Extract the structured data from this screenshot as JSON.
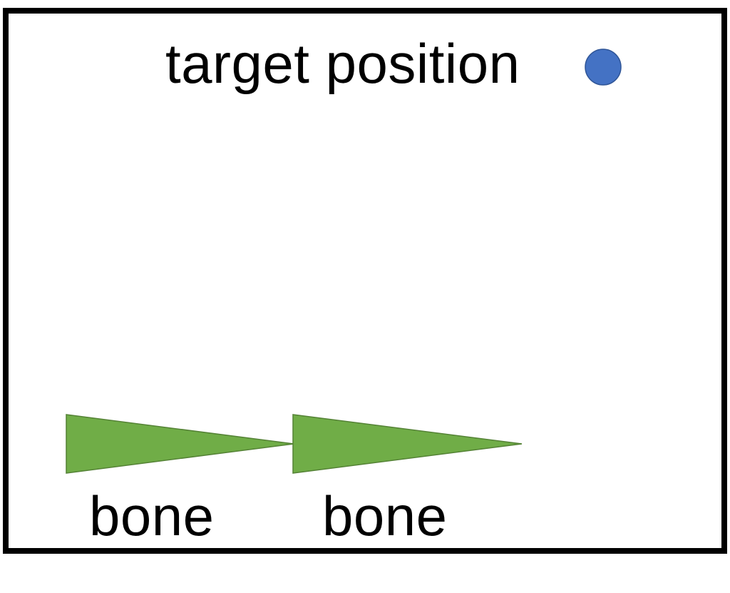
{
  "diagram": {
    "target": {
      "label": "target position",
      "color": "#4472c4",
      "stroke": "#2f5597",
      "icon": "target-dot-icon"
    },
    "bones": [
      {
        "label": "bone",
        "color": "#70ad47",
        "stroke": "#548235",
        "icon": "bone-triangle-icon"
      },
      {
        "label": "bone",
        "color": "#70ad47",
        "stroke": "#548235",
        "icon": "bone-triangle-icon"
      }
    ]
  }
}
